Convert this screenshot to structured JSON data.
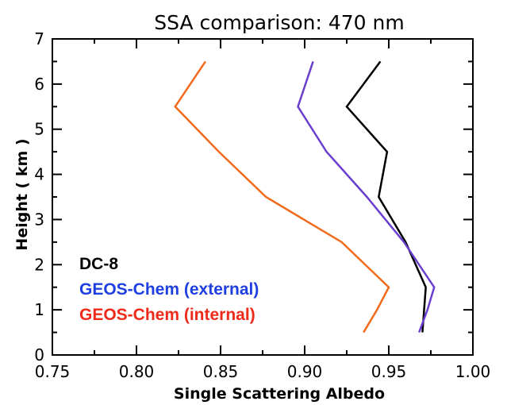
{
  "chart_data": {
    "type": "line",
    "title": "SSA comparison: 470 nm",
    "xlabel": "Single Scattering Albedo",
    "ylabel": "Height ( km )",
    "xlim": [
      0.75,
      1.0
    ],
    "ylim": [
      0,
      7
    ],
    "xticks": [
      "0.75",
      "0.80",
      "0.85",
      "0.90",
      "0.95",
      "1.00"
    ],
    "yticks": [
      "0",
      "1",
      "2",
      "3",
      "4",
      "5",
      "6",
      "7"
    ],
    "grid": false,
    "legend_placement": "bottom-left",
    "series": [
      {
        "name": "DC-8",
        "color": "#000000",
        "x": [
          0.945,
          0.925,
          0.949,
          0.944,
          0.96,
          0.972,
          0.971,
          0.97
        ],
        "y": [
          6.5,
          5.5,
          4.5,
          3.5,
          2.5,
          1.5,
          1.0,
          0.5
        ]
      },
      {
        "name": "GEOS-Chem (external)",
        "color": "#6a3fd0",
        "label_color": "#1f3fe0",
        "x": [
          0.905,
          0.896,
          0.913,
          0.937,
          0.959,
          0.977,
          0.973,
          0.968
        ],
        "y": [
          6.5,
          5.5,
          4.5,
          3.5,
          2.5,
          1.5,
          1.0,
          0.5
        ]
      },
      {
        "name": "GEOS-Chem (internal)",
        "color": "#f26a1b",
        "label_color": "#ee2a1a",
        "x": [
          0.841,
          0.823,
          0.849,
          0.877,
          0.922,
          0.95,
          0.943,
          0.935
        ],
        "y": [
          6.5,
          5.5,
          4.5,
          3.5,
          2.5,
          1.5,
          1.0,
          0.5
        ]
      }
    ]
  }
}
